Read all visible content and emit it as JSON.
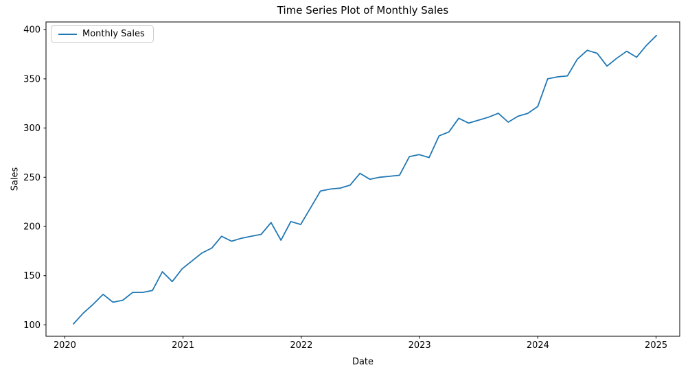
{
  "chart_data": {
    "type": "line",
    "title": "Time Series Plot of Monthly Sales",
    "xlabel": "Date",
    "ylabel": "Sales",
    "legend": [
      "Monthly Sales"
    ],
    "legend_position": "upper left",
    "grid": false,
    "x_tick_labels": [
      "2020",
      "2021",
      "2022",
      "2023",
      "2024",
      "2025"
    ],
    "y_ticks": [
      100,
      150,
      200,
      250,
      300,
      350,
      400
    ],
    "ylim": [
      88,
      408
    ],
    "line_color": "#1f77b4",
    "series": [
      {
        "name": "Monthly Sales",
        "color": "#1f77b4",
        "x": [
          "2020-01",
          "2020-02",
          "2020-03",
          "2020-04",
          "2020-05",
          "2020-06",
          "2020-07",
          "2020-08",
          "2020-09",
          "2020-10",
          "2020-11",
          "2020-12",
          "2021-01",
          "2021-02",
          "2021-03",
          "2021-04",
          "2021-05",
          "2021-06",
          "2021-07",
          "2021-08",
          "2021-09",
          "2021-10",
          "2021-11",
          "2021-12",
          "2022-01",
          "2022-02",
          "2022-03",
          "2022-04",
          "2022-05",
          "2022-06",
          "2022-07",
          "2022-08",
          "2022-09",
          "2022-10",
          "2022-11",
          "2022-12",
          "2023-01",
          "2023-02",
          "2023-03",
          "2023-04",
          "2023-05",
          "2023-06",
          "2023-07",
          "2023-08",
          "2023-09",
          "2023-10",
          "2023-11",
          "2023-12",
          "2024-01",
          "2024-02",
          "2024-03",
          "2024-04",
          "2024-05",
          "2024-06",
          "2024-07",
          "2024-08",
          "2024-09",
          "2024-10",
          "2024-11",
          "2024-12"
        ],
        "values": [
          101,
          112,
          121,
          131,
          123,
          125,
          133,
          133,
          135,
          154,
          144,
          157,
          165,
          173,
          178,
          190,
          185,
          188,
          190,
          192,
          204,
          186,
          205,
          202,
          219,
          236,
          238,
          239,
          242,
          254,
          248,
          250,
          251,
          252,
          271,
          273,
          270,
          292,
          296,
          310,
          305,
          308,
          311,
          315,
          306,
          312,
          315,
          322,
          350,
          352,
          353,
          370,
          379,
          376,
          363,
          371,
          378,
          372,
          384,
          394
        ]
      }
    ]
  }
}
